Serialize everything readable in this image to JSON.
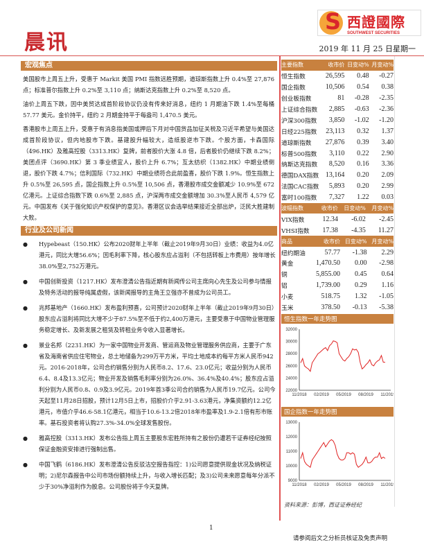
{
  "header": {
    "title": "晨讯",
    "logo_cn": "西證國際",
    "logo_en": "SOUTHWEST SECURITIES",
    "date": "2019 年 11 月 25 日星期一"
  },
  "macro": {
    "heading": "宏观焦点",
    "paragraphs": [
      "美国股市上周五上升，受惠于 Markit 美国 PMI 指数远胜预期，道琼斯指数上升 0.4%至 27,876 点；标准普尔指数上升 0.2%至 3,110 点；纳斯达克指数上升 0.2%至 8,520 点。",
      "油价上周五下跌，因中美贸达成首阶段协议仍没有传来好消息，纽约 1 月期油下跌 1.4%至每桶 57.77 美元。金价持平，纽约 2 月期金持平于每盎司 1,470.5 美元。",
      "香港股市上周五上升，受惠于有消息指美国或押后下月对中国货品加征关税及习近平希望与美国达成首阶段协议，但内地股市下跌。基建股升幅较大，造纸股逆市下跌。个股方面，卡森国际（496.HK）及雅高控股（3313.HK）复牌，前者股价大涨 4.8 倍，后者股价仍继续下跌 8.2%；美团点评（3690.HK）第 3 季业绩宜人，股价上升 6.7%；互太纺织（1382.HK）中期业绩倒退，股价下跌 4.7%；信利国际（732.HK）中期业绩符合此前盈喜，股价下跌 1.9%。恒生指数上升 0.5%至 26,595 点，国企指数上升 0.5%至 10,506 点，香港股市成交金额减少 10.9%至 672 亿港元。上证综合指数下跌 0.6%至 2,885 点，沪深两市成交金额增加 30.3%至人民币 4,579 亿元。中国发布《关于强化知识产权保护的意见》。香港区议会选举结果接近全部出炉，泛民大胜建制大败。"
    ]
  },
  "industry": {
    "heading": "行业及公司新闻",
    "items": [
      "Hypebeast（150.HK）公布2020财年上半年（截止2019年9月30日）业绩：收益为4.0亿港元，同比大增56.6%；因毛利率下降，核心股东应占溢利（不包括转板上市费用）按年增长38.0%至2,752万港元。",
      "中国创新投资（1217.HK）发布澄清公告指近期有新闻传公司主席向心先生及公司参与情报及特务活动的报导纯属虚假，该新闻报导的主角王立强亦不曾成为公司员工。",
      "兆邦基地产（1660.HK）发布盈利预喜，公司预计2020财年上半年（截止2019年9月30日）股东应占溢利将同比大增不少于87.5%至不低于约2,400万港元，主要受惠于中国物业管理服务稳定增长、及新发展之租赁及转租业务令收入显著增长。",
      "景业名邦（2231.HK）为一家中国物业开发商、管运商及物业管理服务供应商，主要于广东省及海南省供应住宅物业，总土地储备为299万平方米，平均土地成本约每平方米人民币942元。2016-2018年，公司合约销售分别为人民币8.2、17.6、23.0亿元；收益分别为人民币6.4、8.4及13.3亿元；物业开发及销售毛利率分别为26.0%、36.4%及40.4%；股东应占溢利分别为人民币0.8、0.9及3.9亿元。2019年首3季公司合约销售为人民币19.7亿元。公司今天起至11月28日招股，预计12月5日上市，招股价介乎2.91-3.63港元，净集资额约12.2亿港元，市值介乎46.6-58.1亿港元，相当于10.6-13.2倍2018年市盈率及1.9-2.1倍有形市账率。基石投资者将认购27.3%-34.0%全球发售股份。",
      "雅高控股（3313.HK）发布公告指上周五主要股东宏胜所持有之股份仍遭若干证券经纪按照保证金融资安排进行强制出售。",
      "中国飞鹤（6186.HK）发布澄清公告反驳沽空报告指控：1)公司愿意提供现金状况及纳税证明；2)尼尔森报告中公司市场份额持续上升，与收入增长匹配；及3)公司未来愿意每年分派不少于30%净溢利作为股息。公司股份将于今天复牌。"
    ]
  },
  "tables": [
    {
      "headers": [
        "主要指数",
        "收市价",
        "日变动%",
        "月变动%"
      ],
      "rows": [
        [
          "恒生指数",
          "26,595",
          "0.48",
          "-0.27"
        ],
        [
          "国企指数",
          "10,506",
          "0.54",
          "0.38"
        ],
        [
          "创业板指数",
          "81",
          "-0.28",
          "-2.35"
        ],
        [
          "上证综合指数",
          "2,885",
          "-0.63",
          "-2.36"
        ],
        [
          "沪深300指数",
          "3,850",
          "-1.02",
          "-1.20"
        ],
        [
          "日经225指数",
          "23,113",
          "0.32",
          "1.37"
        ],
        [
          "道琼斯指数",
          "27,876",
          "0.39",
          "3.40"
        ],
        [
          "标普500指数",
          "3,110",
          "0.22",
          "2.90"
        ],
        [
          "纳斯达克指数",
          "8,520",
          "0.16",
          "3.36"
        ],
        [
          "德国DAX指数",
          "13,164",
          "0.20",
          "2.09"
        ],
        [
          "法国CAC指数",
          "5,893",
          "0.20",
          "2.99"
        ],
        [
          "富时100指数",
          "7,327",
          "1.22",
          "0.03"
        ]
      ]
    },
    {
      "headers": [
        "波幅指数",
        "收市价",
        "日变动%",
        "月变动%"
      ],
      "rows": [
        [
          "VIX指数",
          "12.34",
          "-6.02",
          "-2.45"
        ],
        [
          "VHSI指数",
          "17.38",
          "-4.35",
          "11.27"
        ]
      ]
    },
    {
      "headers": [
        "商品",
        "收市价",
        "日变动%",
        "月变动%"
      ],
      "rows": [
        [
          "纽约期油",
          "57.77",
          "-1.38",
          "2.29"
        ],
        [
          "黄金",
          "1,470.50",
          "0.00",
          "-2.98"
        ],
        [
          "铜",
          "5,855.00",
          "0.45",
          "0.64"
        ],
        [
          "铝",
          "1,739.00",
          "0.29",
          "1.16"
        ],
        [
          "小麦",
          "518.75",
          "1.32",
          "-1.05"
        ],
        [
          "玉米",
          "378.50",
          "-0.13",
          "-5.38"
        ]
      ]
    }
  ],
  "chart_data": [
    {
      "type": "line",
      "title": "恒生指数一年走势图",
      "color": "#e02020",
      "ylim": [
        22000,
        32000
      ],
      "yticks": [
        "32000",
        "30000",
        "28000",
        "26000",
        "24000",
        "22000"
      ],
      "xticks": [
        "11/2018",
        "02/2019",
        "05/2019",
        "08/2019",
        "11/2019"
      ],
      "values": [
        26500,
        27200,
        26000,
        25700,
        25500,
        25100,
        26500,
        27000,
        27500,
        28000,
        28200,
        28500,
        28800,
        29000,
        28500,
        29300,
        29600,
        30100,
        30000,
        29800,
        28000,
        27500,
        27000,
        26800,
        27200,
        27500,
        28000,
        28800,
        28600,
        28700,
        28200,
        26500,
        25500,
        25800,
        26200,
        26500,
        27000,
        26200,
        26000,
        26500,
        26800,
        27000,
        27700,
        26600,
        26595
      ]
    },
    {
      "type": "line",
      "title": "国企指数一年走势图",
      "color": "#e02020",
      "ylim": [
        9000,
        13000
      ],
      "yticks": [
        "13000",
        "12000",
        "11000",
        "10000",
        "9000"
      ],
      "xticks": [
        "11/2018",
        "02/2019",
        "05/2019",
        "08/2019",
        "11/2019"
      ],
      "values": [
        10500,
        10900,
        10300,
        10100,
        10000,
        9900,
        10400,
        10600,
        10800,
        11000,
        11200,
        11400,
        11600,
        11300,
        11500,
        11700,
        11800,
        11700,
        11400,
        10800,
        10500,
        10400,
        10400,
        10500,
        10900,
        10900,
        10800,
        10900,
        10800,
        10100,
        9900,
        10000,
        10100,
        10300,
        10600,
        10200,
        10200,
        10300,
        10500,
        10600,
        10600,
        10900,
        10500,
        10600,
        10506
      ]
    }
  ],
  "source": "资料来源：彭博，西证证券经纪",
  "footer": {
    "page": "1",
    "disclaimer": "请参阅后文之分析员核证及免责声明"
  }
}
